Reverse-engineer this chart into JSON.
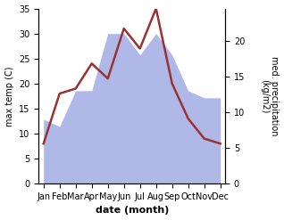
{
  "months": [
    "Jan",
    "Feb",
    "Mar",
    "Apr",
    "May",
    "Jun",
    "Jul",
    "Aug",
    "Sep",
    "Oct",
    "Nov",
    "Dec"
  ],
  "temperature": [
    8,
    18,
    19,
    24,
    21,
    31,
    27,
    35,
    20,
    13,
    9,
    8
  ],
  "precipitation": [
    9,
    8,
    13,
    13,
    21,
    21,
    18,
    21,
    18,
    13,
    12,
    12
  ],
  "temp_color": "#993333",
  "precip_fill_color": "#b0b8e8",
  "temp_ylim": [
    0,
    35
  ],
  "precip_ylim": [
    0,
    24.5
  ],
  "temp_yticks": [
    0,
    5,
    10,
    15,
    20,
    25,
    30,
    35
  ],
  "precip_yticks": [
    0,
    5,
    10,
    15,
    20
  ],
  "xlabel": "date (month)",
  "ylabel_left": "max temp (C)",
  "ylabel_right": "med. precipitation\n(kg/m2)",
  "figsize": [
    3.18,
    2.47
  ],
  "dpi": 100
}
